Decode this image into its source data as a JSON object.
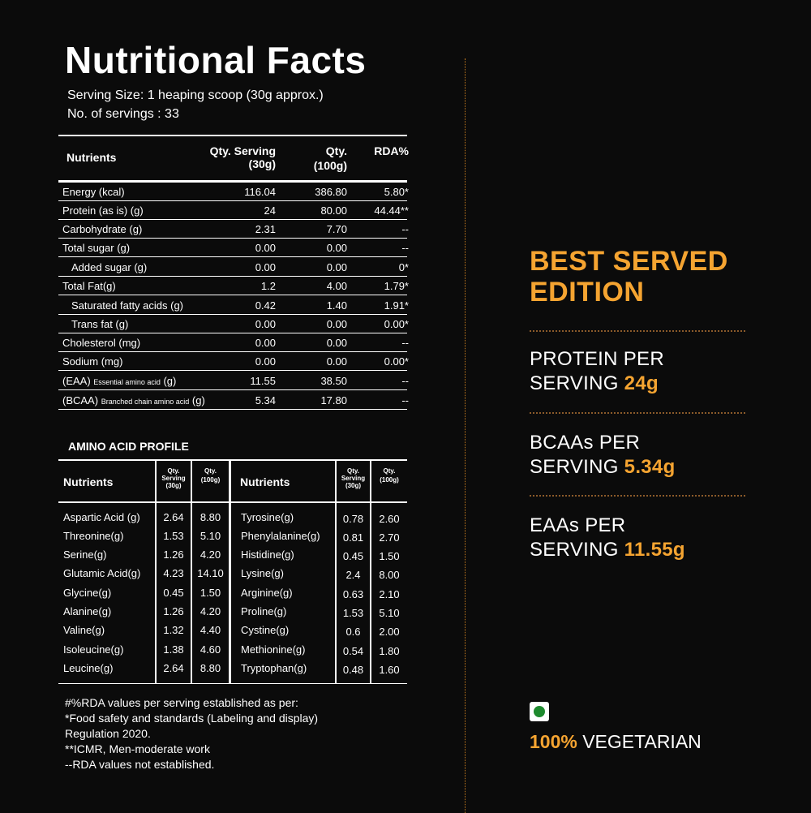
{
  "title": "Nutritional Facts",
  "serving_size": "Serving Size: 1 heaping scoop (30g approx.)",
  "num_servings": "No. of servings : 33",
  "nutrients_table": {
    "headers": {
      "nutrients": "Nutrients",
      "qty_serving": "Qty. Serving",
      "qty_serving_unit": "(30g)",
      "qty_100": "Qty.",
      "qty_100_unit": "(100g)",
      "rda": "RDA%"
    },
    "rows": [
      {
        "name": "Energy (kcal)",
        "serving": "116.04",
        "per100": "386.80",
        "rda": "5.80*"
      },
      {
        "name": "Protein (as is) (g)",
        "serving": "24",
        "per100": "80.00",
        "rda": "44.44**"
      },
      {
        "name": "Carbohydrate (g)",
        "serving": "2.31",
        "per100": "7.70",
        "rda": "--"
      },
      {
        "name": "Total sugar (g)",
        "serving": "0.00",
        "per100": "0.00",
        "rda": "--"
      },
      {
        "name": "Added sugar (g)",
        "serving": "0.00",
        "per100": "0.00",
        "rda": "0*"
      },
      {
        "name": "Total Fat(g)",
        "serving": "1.2",
        "per100": "4.00",
        "rda": "1.79*"
      },
      {
        "name": "Saturated fatty acids (g)",
        "serving": "0.42",
        "per100": "1.40",
        "rda": "1.91*"
      },
      {
        "name": "Trans fat (g)",
        "serving": "0.00",
        "per100": "0.00",
        "rda": "0.00*"
      },
      {
        "name": "Cholesterol (mg)",
        "serving": "0.00",
        "per100": "0.00",
        "rda": "--"
      },
      {
        "name": "Sodium (mg)",
        "serving": "0.00",
        "per100": "0.00",
        "rda": "0.00*"
      },
      {
        "name": "(EAA)",
        "name_small": "Essential amino acid",
        "name_unit": "(g)",
        "serving": "11.55",
        "per100": "38.50",
        "rda": "--"
      },
      {
        "name": "(BCAA)",
        "name_small": "Branched chain amino acid",
        "name_unit": "(g)",
        "serving": "5.34",
        "per100": "17.80",
        "rda": "--"
      }
    ]
  },
  "amino": {
    "title": "AMINO ACID PROFILE",
    "headers": {
      "nutrients": "Nutrients",
      "qty": "Qty.",
      "serving": "Serving",
      "serving_unit": "(30g)",
      "per100_unit": "(100g)"
    },
    "left": [
      {
        "name": "Aspartic Acid (g)",
        "serving": "2.64",
        "per100": "8.80"
      },
      {
        "name": "Threonine(g)",
        "serving": "1.53",
        "per100": "5.10"
      },
      {
        "name": "Serine(g)",
        "serving": "1.26",
        "per100": "4.20"
      },
      {
        "name": "Glutamic Acid(g)",
        "serving": "4.23",
        "per100": "14.10"
      },
      {
        "name": "Glycine(g)",
        "serving": "0.45",
        "per100": "1.50"
      },
      {
        "name": "Alanine(g)",
        "serving": "1.26",
        "per100": "4.20"
      },
      {
        "name": "Valine(g)",
        "serving": "1.32",
        "per100": "4.40"
      },
      {
        "name": "Isoleucine(g)",
        "serving": "1.38",
        "per100": "4.60"
      },
      {
        "name": "Leucine(g)",
        "serving": "2.64",
        "per100": "8.80"
      }
    ],
    "right": [
      {
        "name": "Tyrosine(g)",
        "serving": "0.78",
        "per100": "2.60"
      },
      {
        "name": "Phenylalanine(g)",
        "serving": "0.81",
        "per100": "2.70"
      },
      {
        "name": "Histidine(g)",
        "serving": "0.45",
        "per100": "1.50"
      },
      {
        "name": "Lysine(g)",
        "serving": "2.4",
        "per100": "8.00"
      },
      {
        "name": "Arginine(g)",
        "serving": "0.63",
        "per100": "2.10"
      },
      {
        "name": "Proline(g)",
        "serving": "1.53",
        "per100": "5.10"
      },
      {
        "name": "Cystine(g)",
        "serving": "0.6",
        "per100": "2.00"
      },
      {
        "name": "Methionine(g)",
        "serving": "0.54",
        "per100": "1.80"
      },
      {
        "name": "Tryptophan(g)",
        "serving": "0.48",
        "per100": "1.60"
      }
    ]
  },
  "footnotes": [
    "#%RDA values per serving established as per:",
    "*Food safety and standards (Labeling and display)",
    "Regulation 2020.",
    "**ICMR, Men-moderate work",
    "--RDA values not established."
  ],
  "right_panel": {
    "heading_line1": "BEST SERVED",
    "heading_line2": "EDITION",
    "features": [
      {
        "line1": "PROTEIN PER",
        "line2_prefix": "SERVING ",
        "value": "24g"
      },
      {
        "line1": "BCAAs PER",
        "line2_prefix": "SERVING ",
        "value": "5.34g"
      },
      {
        "line1": "EAAs PER",
        "line2_prefix": "SERVING ",
        "value": "11.55g"
      }
    ],
    "veg_percent": "100%",
    "veg_label": " VEGETARIAN",
    "veg_icon": "veg-mark-icon",
    "colors": {
      "accent": "#f5a431",
      "background": "#0b0b0b",
      "veg_green": "#1e8a2e"
    }
  }
}
